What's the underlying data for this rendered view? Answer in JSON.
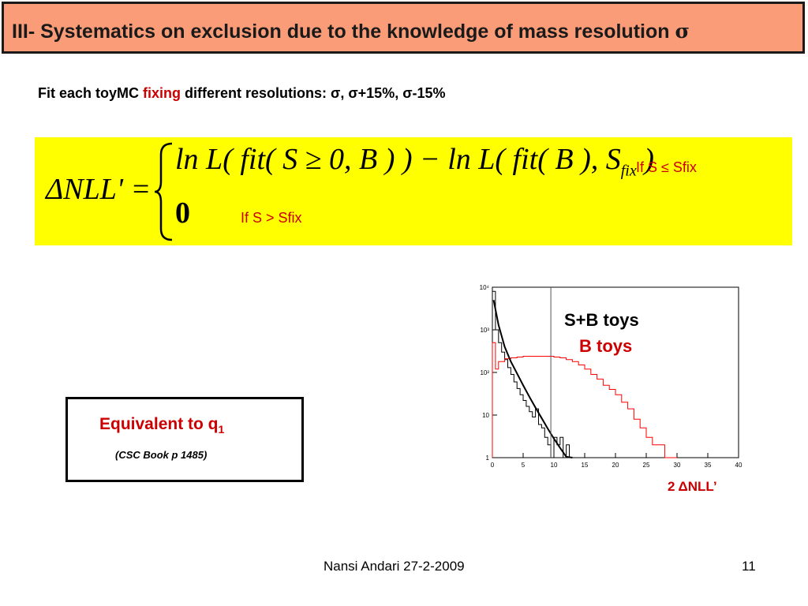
{
  "title": {
    "prefix": "III- Systematics on exclusion due to the knowledge of mass resolution ",
    "sigma": "σ"
  },
  "subtitle": {
    "before": "Fit each toyMC ",
    "highlight": "fixing",
    "after": " different resolutions: σ, σ+15%, σ-15%"
  },
  "formula": {
    "lhs": "ΔNLL' =",
    "line1": "ln L( fit( S ≥ 0, B ) ) − ln L( fit( B ), S",
    "line1_sub": "fix",
    "line1_end": " )",
    "line2": "0",
    "cond1": "If S ≤ Sfix",
    "cond2": "If S > Sfix"
  },
  "equivalence": {
    "text": "Equivalent to q",
    "sub": "1",
    "ref": "(CSC Book p 1485)"
  },
  "chart_data": {
    "type": "histogram",
    "title": "",
    "xlabel": "2 ΔNLL’",
    "ylabel": "",
    "xlim": [
      0,
      40
    ],
    "ylim": [
      1,
      10000
    ],
    "yscale": "log",
    "x_ticks": [
      "0",
      "5",
      "10",
      "15",
      "20",
      "25",
      "30",
      "35",
      "40"
    ],
    "y_ticks": [
      "1",
      "10",
      "10²",
      "10³",
      "10⁴"
    ],
    "vertical_line_x": 9.5,
    "series": [
      {
        "name": "S+B toys",
        "color": "#000000",
        "bin_edges": [
          0,
          0.5,
          1,
          1.5,
          2,
          2.5,
          3,
          3.5,
          4,
          4.5,
          5,
          5.5,
          6,
          6.5,
          7,
          7.5,
          8,
          8.5,
          9,
          9.5,
          10,
          10.5,
          11,
          11.5,
          12,
          12.5,
          13,
          13.5,
          14,
          14.5,
          15
        ],
        "counts": [
          8000,
          1000,
          500,
          300,
          200,
          130,
          90,
          60,
          42,
          30,
          22,
          16,
          12,
          9,
          14,
          6,
          5,
          3,
          2,
          1,
          3,
          2,
          3,
          1,
          2,
          1,
          1,
          1,
          1,
          1
        ]
      },
      {
        "name": "B toys",
        "color": "#ff0000",
        "bin_edges": [
          0,
          0.5,
          1,
          2,
          3,
          4,
          5,
          6,
          7,
          8,
          9,
          10,
          11,
          12,
          13,
          14,
          15,
          16,
          17,
          18,
          19,
          20,
          21,
          22,
          23,
          24,
          25,
          26,
          27,
          28,
          29,
          30
        ],
        "counts": [
          500,
          120,
          180,
          210,
          220,
          230,
          240,
          240,
          240,
          240,
          240,
          230,
          220,
          200,
          180,
          150,
          120,
          90,
          70,
          50,
          40,
          30,
          20,
          14,
          8,
          5,
          3,
          2,
          2,
          1,
          1
        ]
      }
    ],
    "fit_curve": {
      "color": "#000000",
      "x": [
        0.2,
        1,
        2,
        3,
        4,
        5,
        6,
        7,
        8,
        9,
        10,
        11,
        12,
        13
      ],
      "y": [
        5000,
        1300,
        400,
        180,
        95,
        50,
        27,
        15,
        8.5,
        4.8,
        2.8,
        1.7,
        1.05,
        0.7
      ]
    }
  },
  "footer": {
    "author_date": "Nansi Andari 27-2-2009",
    "page": "11"
  }
}
